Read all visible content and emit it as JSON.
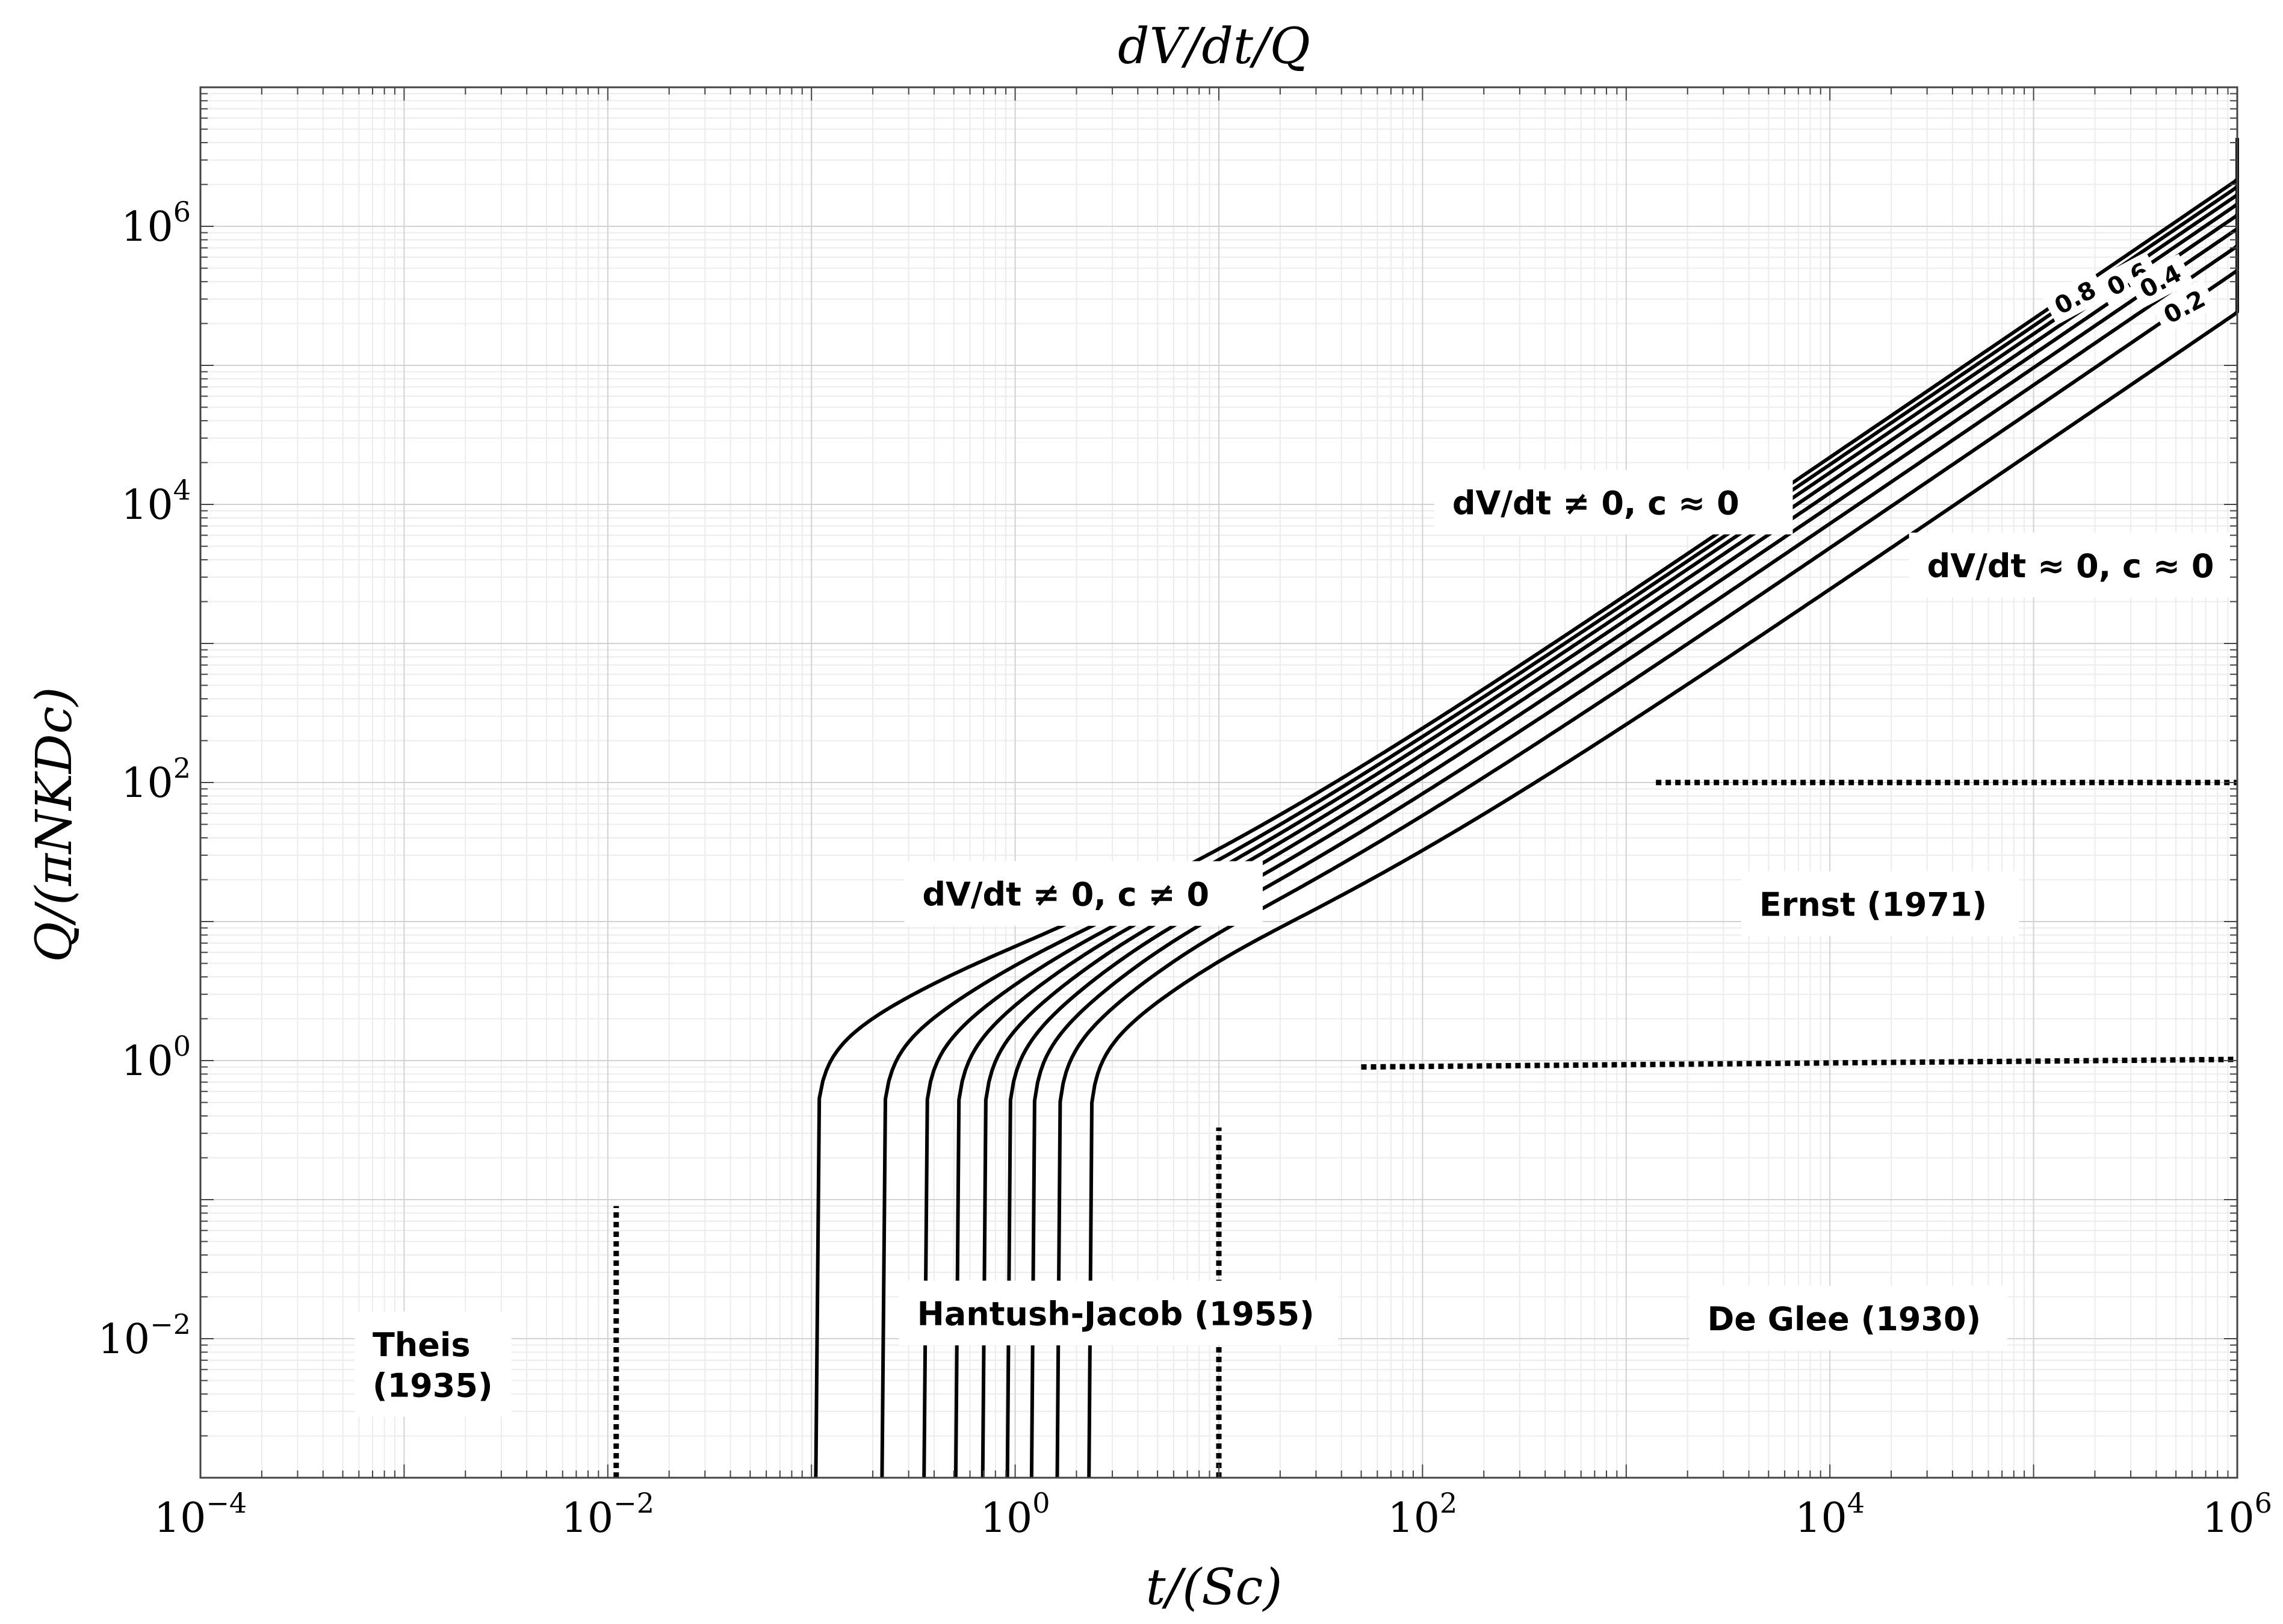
{
  "chart_data": {
    "type": "line",
    "title": "dV/dt/Q",
    "xlabel": "t/(Sc)",
    "ylabel": "Q/(πNKDc)",
    "x_scale": "log",
    "y_scale": "log",
    "xlim": [
      0.0001,
      1000000
    ],
    "ylim": [
      0.001,
      10000000
    ],
    "grid": true,
    "x_ticks": [
      {
        "value": 0.0001,
        "mantissa": "10",
        "exp": "−4"
      },
      {
        "value": 0.01,
        "mantissa": "10",
        "exp": "−2"
      },
      {
        "value": 1,
        "mantissa": "10",
        "exp": "0"
      },
      {
        "value": 100,
        "mantissa": "10",
        "exp": "2"
      },
      {
        "value": 10000,
        "mantissa": "10",
        "exp": "4"
      },
      {
        "value": 1000000,
        "mantissa": "10",
        "exp": "6"
      }
    ],
    "y_ticks": [
      {
        "value": 0.01,
        "mantissa": "10",
        "exp": "−2"
      },
      {
        "value": 1,
        "mantissa": "10",
        "exp": "0"
      },
      {
        "value": 100,
        "mantissa": "10",
        "exp": "2"
      },
      {
        "value": 10000,
        "mantissa": "10",
        "exp": "4"
      },
      {
        "value": 1000000,
        "mantissa": "10",
        "exp": "6"
      }
    ],
    "contours": [
      {
        "level": 0.9,
        "t_onset": 0.105,
        "label": ""
      },
      {
        "level": 0.8,
        "t_onset": 0.222,
        "label": "0.8"
      },
      {
        "level": 0.7,
        "t_onset": 0.357,
        "label": ""
      },
      {
        "level": 0.6,
        "t_onset": 0.511,
        "label": "0.6"
      },
      {
        "level": 0.5,
        "t_onset": 0.693,
        "label": ""
      },
      {
        "level": 0.4,
        "t_onset": 0.916,
        "label": "0.4"
      },
      {
        "level": 0.3,
        "t_onset": 1.204,
        "label": ""
      },
      {
        "level": 0.2,
        "t_onset": 1.609,
        "label": "0.2"
      },
      {
        "level": 0.1,
        "t_onset": 2.303,
        "label": ""
      }
    ],
    "boundaries": [
      {
        "name": "theis-boundary",
        "style": "dotted",
        "points": [
          [
            0.011,
            0.001
          ],
          [
            0.011,
            0.09
          ]
        ]
      },
      {
        "name": "hantush-boundary",
        "style": "dotted",
        "points": [
          [
            10,
            0.001
          ],
          [
            10,
            0.33
          ]
        ]
      },
      {
        "name": "deglee-boundary",
        "style": "dotted",
        "points": [
          [
            50,
            0.9
          ],
          [
            1000000,
            1.02
          ]
        ]
      },
      {
        "name": "ernst-boundary",
        "style": "dotted",
        "points": [
          [
            1400,
            100
          ],
          [
            1000000,
            100
          ]
        ]
      }
    ],
    "regions": [
      {
        "name": "region-theis",
        "lines": [
          "Theis",
          "(1935)"
        ],
        "x": 0.0007,
        "y": 0.0075
      },
      {
        "name": "region-hantush-jacob",
        "lines": [
          "Hantush-Jacob (1955)"
        ],
        "x": 0.33,
        "y": 0.0125
      },
      {
        "name": "region-de-glee",
        "lines": [
          "De Glee (1930)"
        ],
        "x": 2500,
        "y": 0.0115
      },
      {
        "name": "region-ernst",
        "lines": [
          "Ernst (1971)"
        ],
        "x": 4500,
        "y": 11
      },
      {
        "name": "region-dvdt-ne0-c-ne0",
        "lines": [
          "dV/dt ≠ 0, c ≠ 0"
        ],
        "x": 0.35,
        "y": 13
      },
      {
        "name": "region-dvdt-ne0-c-approx0",
        "lines": [
          "dV/dt ≠ 0, c ≈ 0"
        ],
        "x": 140,
        "y": 8500
      },
      {
        "name": "region-dvdt-approx0-c-approx0",
        "lines": [
          "dV/dt ≈ 0, c ≈ 0"
        ],
        "x": 30000,
        "y": 3000
      }
    ]
  }
}
